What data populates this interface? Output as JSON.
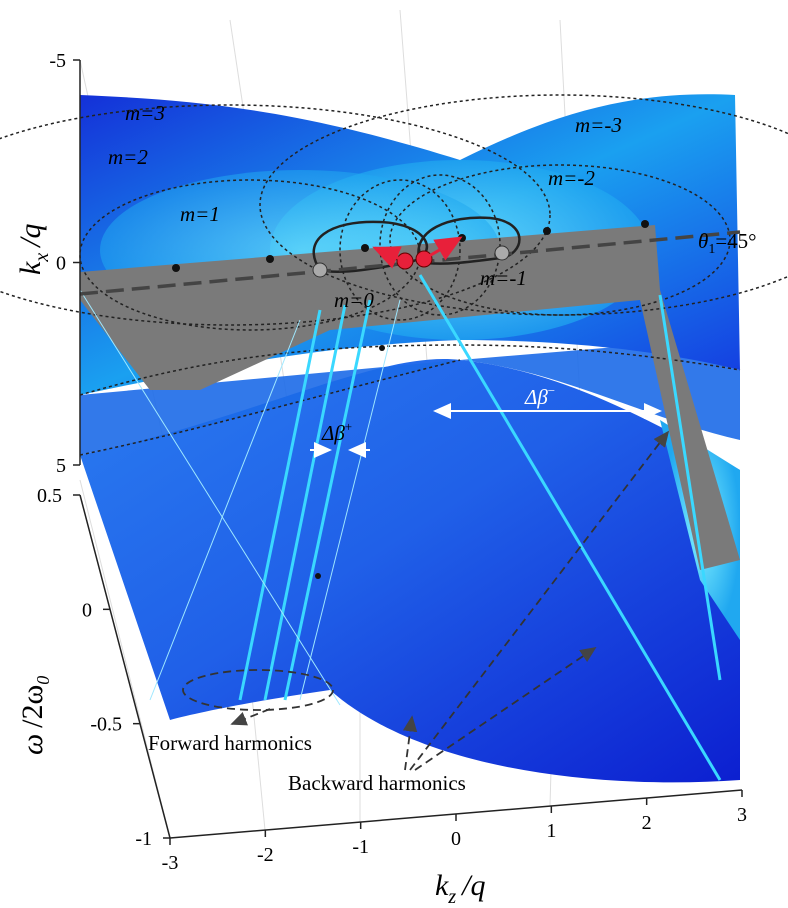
{
  "chart_data": {
    "type": "surface3d",
    "xlabel": {
      "symbol": "k",
      "subscript": "z",
      "suffix": "/q"
    },
    "ylabel": {
      "symbol": "k",
      "subscript": "x",
      "suffix": "/q"
    },
    "zlabel": {
      "symbol": "ω",
      "suffix": "/2ω",
      "subscript": "0"
    },
    "xlim": [
      -3,
      3
    ],
    "xticks": [
      -3,
      -2,
      -1,
      0,
      1,
      2,
      3
    ],
    "ylim": [
      -5,
      5
    ],
    "yticks": [
      -5,
      0,
      5
    ],
    "zlim": [
      -1,
      0.5
    ],
    "zticks": [
      -1,
      -0.5,
      0,
      0.5
    ],
    "annotations": {
      "modes": [
        "m=3",
        "m=2",
        "m=1",
        "m=0",
        "m=-1",
        "m=-2",
        "m=-3"
      ],
      "angle": {
        "symbol": "θ",
        "subscript": "1",
        "suffix": "=45°"
      },
      "delta_plus": {
        "symbol": "Δβ",
        "superscript": "+"
      },
      "delta_minus": {
        "symbol": "Δβ",
        "superscript": "−"
      },
      "forward": "Forward harmonics",
      "backward": "Backward harmonics"
    }
  }
}
